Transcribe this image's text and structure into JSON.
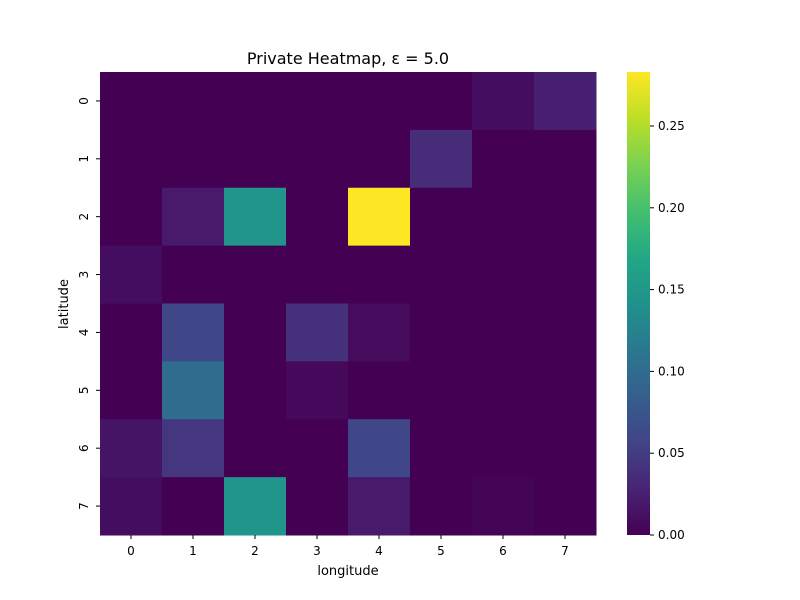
{
  "chart_data": {
    "type": "heatmap",
    "title": "Private Heatmap, ε = 5.0",
    "xlabel": "longitude",
    "ylabel": "latitude",
    "x_categories": [
      "0",
      "1",
      "2",
      "3",
      "4",
      "5",
      "6",
      "7"
    ],
    "y_categories": [
      "0",
      "1",
      "2",
      "3",
      "4",
      "5",
      "6",
      "7"
    ],
    "values": [
      [
        0.0,
        0.0,
        0.0,
        0.0,
        0.0,
        0.0,
        0.01,
        0.025
      ],
      [
        0.0,
        0.0,
        0.0,
        0.0,
        0.0,
        0.035,
        0.0,
        0.0
      ],
      [
        0.0,
        0.02,
        0.145,
        0.0,
        0.283,
        0.0,
        0.0,
        0.0
      ],
      [
        0.01,
        0.0,
        0.0,
        0.0,
        0.0,
        0.0,
        0.0,
        0.0
      ],
      [
        0.0,
        0.06,
        0.0,
        0.04,
        0.008,
        0.0,
        0.0,
        0.0
      ],
      [
        0.0,
        0.1,
        0.0,
        0.006,
        0.0,
        0.0,
        0.0,
        0.0
      ],
      [
        0.015,
        0.045,
        0.0,
        0.0,
        0.06,
        0.0,
        0.0,
        0.0
      ],
      [
        0.01,
        0.0,
        0.145,
        0.0,
        0.02,
        0.0,
        0.003,
        0.0
      ]
    ],
    "colormap": "viridis",
    "vmin": 0.0,
    "vmax": 0.283,
    "colorbar_ticks": [
      0.0,
      0.05,
      0.1,
      0.15,
      0.2,
      0.25
    ],
    "colorbar_tick_labels": [
      "0.00",
      "0.05",
      "0.10",
      "0.15",
      "0.20",
      "0.25"
    ]
  }
}
